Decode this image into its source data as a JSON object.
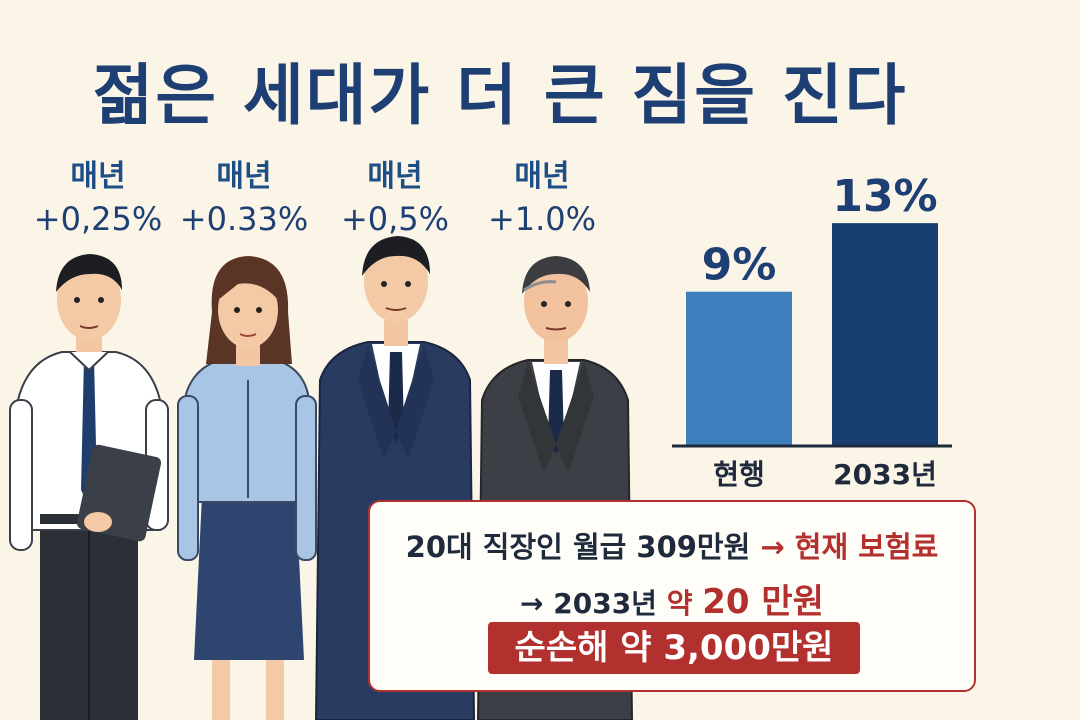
{
  "title": "젊은 세대가 더 큰 짐을 진다",
  "rates": [
    {
      "label": "매년",
      "value": "+0,25%"
    },
    {
      "label": "매년",
      "value": "+0.33%"
    },
    {
      "label": "매년",
      "value": "+0,5%"
    },
    {
      "label": "매년",
      "value": "+1.0%"
    }
  ],
  "chart_data": {
    "type": "bar",
    "categories": [
      "현행",
      "2033년"
    ],
    "values": [
      9,
      13
    ],
    "data_labels": [
      "9%",
      "13%"
    ],
    "ylim": [
      0,
      14
    ],
    "grid": false,
    "colors": [
      "#3f7fbd",
      "#183e6f"
    ]
  },
  "info": {
    "line1_black": "20대 직장인 월급 309만원",
    "line1_red": "→ 현재 보험료",
    "line2_black": "→ 2033년",
    "line2_red_small": "약",
    "line2_red_big": "20 만원",
    "loss": "순손해 약 3,000만원"
  },
  "colors": {
    "title": "#1d3f73",
    "accent_red": "#b2312e",
    "background": "#fbf5e8"
  }
}
